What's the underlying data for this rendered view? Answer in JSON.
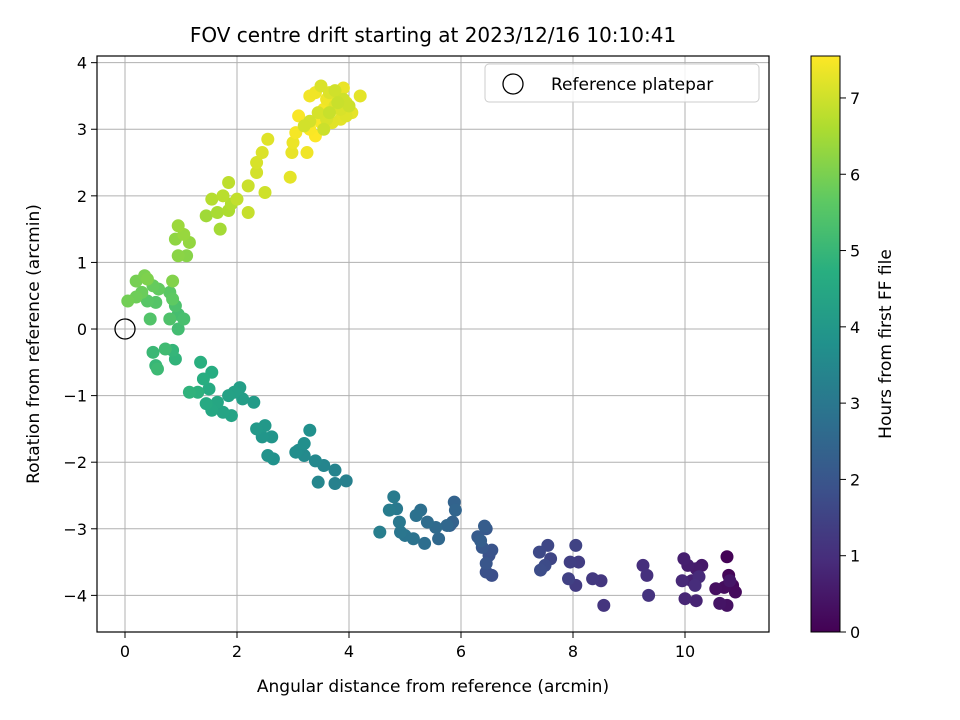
{
  "chart_data": {
    "type": "scatter",
    "title": "FOV centre drift starting at 2023/12/16 10:10:41",
    "xlabel": "Angular distance from reference (arcmin)",
    "ylabel": "Rotation from reference (arcmin)",
    "xlim": [
      -0.5,
      11.5
    ],
    "ylim": [
      -4.55,
      4.1
    ],
    "xticks": [
      0,
      2,
      4,
      6,
      8,
      10
    ],
    "yticks": [
      -4,
      -3,
      -2,
      -1,
      0,
      1,
      2,
      3,
      4
    ],
    "grid": true,
    "legend": {
      "placement": "top-right",
      "entries": [
        "Reference platepar"
      ]
    },
    "reference_point": {
      "label": "Reference platepar",
      "x": 0,
      "y": 0
    },
    "colorbar": {
      "label": "Hours from first FF file",
      "colormap": "viridis",
      "range": [
        0,
        7.55
      ],
      "ticks": [
        0,
        1,
        2,
        3,
        4,
        5,
        6,
        7
      ]
    },
    "series": [
      {
        "points": [
          [
            10.75,
            -3.42,
            0.05
          ],
          [
            10.78,
            -3.7,
            0.1
          ],
          [
            10.85,
            -3.85,
            0.15
          ],
          [
            10.9,
            -3.95,
            0.2
          ],
          [
            10.7,
            -3.88,
            0.25
          ],
          [
            10.55,
            -3.9,
            0.3
          ],
          [
            10.75,
            -4.15,
            0.35
          ],
          [
            10.62,
            -4.12,
            0.4
          ],
          [
            10.8,
            -3.78,
            0.45
          ],
          [
            10.3,
            -3.55,
            0.5
          ],
          [
            10.2,
            -3.6,
            0.55
          ],
          [
            10.05,
            -3.55,
            0.6
          ],
          [
            9.98,
            -3.45,
            0.65
          ],
          [
            10.12,
            -3.78,
            0.7
          ],
          [
            10.2,
            -4.08,
            0.75
          ],
          [
            10.0,
            -4.05,
            0.8
          ],
          [
            9.95,
            -3.78,
            0.85
          ],
          [
            10.25,
            -3.72,
            0.9
          ],
          [
            10.18,
            -3.85,
            0.95
          ],
          [
            9.25,
            -3.55,
            1.0
          ],
          [
            9.32,
            -3.7,
            1.05
          ],
          [
            9.35,
            -4.0,
            1.1
          ],
          [
            8.55,
            -4.15,
            1.15
          ],
          [
            8.5,
            -3.78,
            1.2
          ],
          [
            8.35,
            -3.75,
            1.25
          ],
          [
            8.05,
            -3.85,
            1.3
          ],
          [
            8.1,
            -3.5,
            1.35
          ],
          [
            7.95,
            -3.5,
            1.4
          ],
          [
            7.92,
            -3.75,
            1.45
          ],
          [
            8.05,
            -3.25,
            1.5
          ],
          [
            7.6,
            -3.45,
            1.55
          ],
          [
            7.55,
            -3.25,
            1.6
          ],
          [
            7.4,
            -3.35,
            1.65
          ],
          [
            7.5,
            -3.55,
            1.7
          ],
          [
            7.42,
            -3.62,
            1.75
          ],
          [
            6.55,
            -3.7,
            1.8
          ],
          [
            6.45,
            -3.65,
            1.85
          ],
          [
            6.5,
            -3.4,
            1.9
          ],
          [
            6.55,
            -3.32,
            1.95
          ],
          [
            6.45,
            -3.52,
            2.0
          ],
          [
            6.38,
            -3.28,
            2.05
          ],
          [
            6.45,
            -3.0,
            2.1
          ],
          [
            6.3,
            -3.12,
            2.15
          ],
          [
            6.42,
            -2.96,
            2.2
          ],
          [
            6.35,
            -3.18,
            2.25
          ],
          [
            5.8,
            -2.95,
            2.3
          ],
          [
            5.85,
            -2.9,
            2.35
          ],
          [
            5.88,
            -2.6,
            2.4
          ],
          [
            5.9,
            -2.72,
            2.45
          ],
          [
            5.75,
            -2.95,
            2.5
          ],
          [
            5.6,
            -3.15,
            2.55
          ],
          [
            5.55,
            -2.98,
            2.6
          ],
          [
            5.4,
            -2.9,
            2.65
          ],
          [
            5.35,
            -3.22,
            2.7
          ],
          [
            5.28,
            -2.72,
            2.75
          ],
          [
            5.2,
            -2.8,
            2.8
          ],
          [
            5.15,
            -3.15,
            2.85
          ],
          [
            5.0,
            -3.1,
            2.9
          ],
          [
            4.92,
            -3.05,
            2.95
          ],
          [
            4.9,
            -2.9,
            3.0
          ],
          [
            4.85,
            -2.7,
            3.05
          ],
          [
            4.8,
            -2.52,
            3.1
          ],
          [
            4.72,
            -2.72,
            3.15
          ],
          [
            4.55,
            -3.05,
            3.2
          ],
          [
            3.95,
            -2.28,
            3.25
          ],
          [
            3.75,
            -2.32,
            3.3
          ],
          [
            3.75,
            -2.12,
            3.35
          ],
          [
            3.55,
            -2.05,
            3.4
          ],
          [
            3.45,
            -2.3,
            3.45
          ],
          [
            3.4,
            -1.98,
            3.5
          ],
          [
            3.2,
            -1.9,
            3.55
          ],
          [
            3.1,
            -1.82,
            3.6
          ],
          [
            3.05,
            -1.85,
            3.65
          ],
          [
            3.2,
            -1.72,
            3.7
          ],
          [
            3.3,
            -1.52,
            3.75
          ],
          [
            2.65,
            -1.95,
            3.8
          ],
          [
            2.55,
            -1.9,
            3.85
          ],
          [
            2.62,
            -1.62,
            3.9
          ],
          [
            2.45,
            -1.62,
            3.95
          ],
          [
            2.5,
            -1.45,
            4.0
          ],
          [
            2.35,
            -1.5,
            4.05
          ],
          [
            2.3,
            -1.1,
            4.1
          ],
          [
            2.1,
            -1.05,
            4.15
          ],
          [
            2.05,
            -0.88,
            4.2
          ],
          [
            1.95,
            -0.95,
            4.25
          ],
          [
            1.85,
            -1.0,
            4.3
          ],
          [
            1.9,
            -1.3,
            4.35
          ],
          [
            1.75,
            -1.25,
            4.4
          ],
          [
            1.65,
            -1.1,
            4.45
          ],
          [
            1.55,
            -1.22,
            4.5
          ],
          [
            1.45,
            -1.12,
            4.55
          ],
          [
            1.5,
            -0.9,
            4.6
          ],
          [
            1.55,
            -0.65,
            4.65
          ],
          [
            1.4,
            -0.75,
            4.7
          ],
          [
            1.35,
            -0.5,
            4.75
          ],
          [
            1.3,
            -0.95,
            4.8
          ],
          [
            1.15,
            -0.95,
            4.85
          ],
          [
            0.9,
            -0.45,
            4.9
          ],
          [
            0.85,
            -0.32,
            4.95
          ],
          [
            0.55,
            -0.55,
            5.0
          ],
          [
            0.5,
            -0.35,
            5.05
          ],
          [
            0.58,
            -0.6,
            5.1
          ],
          [
            0.72,
            -0.3,
            5.15
          ],
          [
            0.95,
            0.0,
            5.2
          ],
          [
            0.95,
            0.22,
            5.25
          ],
          [
            1.05,
            0.15,
            5.3
          ],
          [
            0.9,
            0.35,
            5.35
          ],
          [
            0.8,
            0.15,
            5.4
          ],
          [
            0.45,
            0.15,
            5.45
          ],
          [
            0.55,
            0.4,
            5.5
          ],
          [
            0.4,
            0.42,
            5.55
          ],
          [
            0.8,
            0.55,
            5.6
          ],
          [
            0.85,
            0.45,
            5.65
          ],
          [
            0.6,
            0.6,
            5.7
          ],
          [
            0.5,
            0.65,
            5.75
          ],
          [
            0.3,
            0.55,
            5.8
          ],
          [
            0.2,
            0.48,
            5.85
          ],
          [
            0.05,
            0.42,
            5.9
          ],
          [
            0.2,
            0.72,
            5.95
          ],
          [
            0.35,
            0.8,
            6.0
          ],
          [
            0.4,
            0.75,
            6.05
          ],
          [
            0.85,
            0.72,
            6.1
          ],
          [
            1.1,
            1.1,
            6.15
          ],
          [
            0.95,
            1.1,
            6.2
          ],
          [
            0.9,
            1.35,
            6.25
          ],
          [
            1.15,
            1.3,
            6.3
          ],
          [
            1.05,
            1.42,
            6.35
          ],
          [
            0.95,
            1.55,
            6.4
          ],
          [
            1.45,
            1.7,
            6.45
          ],
          [
            1.7,
            1.5,
            6.5
          ],
          [
            1.65,
            1.75,
            6.55
          ],
          [
            1.85,
            1.78,
            6.6
          ],
          [
            1.9,
            1.88,
            6.65
          ],
          [
            1.55,
            1.95,
            6.7
          ],
          [
            1.75,
            2.0,
            6.75
          ],
          [
            1.85,
            2.2,
            6.8
          ],
          [
            2.0,
            1.95,
            6.85
          ],
          [
            2.2,
            1.75,
            6.9
          ],
          [
            2.2,
            2.15,
            6.95
          ],
          [
            2.5,
            2.05,
            7.0
          ],
          [
            2.35,
            2.35,
            7.05
          ],
          [
            2.35,
            2.5,
            7.1
          ],
          [
            2.45,
            2.65,
            7.15
          ],
          [
            2.55,
            2.85,
            7.2
          ],
          [
            2.95,
            2.28,
            7.25
          ],
          [
            2.98,
            2.65,
            7.3
          ],
          [
            3.0,
            2.8,
            7.35
          ],
          [
            3.25,
            2.65,
            7.4
          ],
          [
            3.05,
            2.95,
            7.45
          ],
          [
            3.1,
            3.2,
            7.5
          ],
          [
            3.4,
            2.9,
            7.55
          ],
          [
            3.3,
            3.0,
            7.52
          ],
          [
            3.5,
            3.1,
            7.48
          ],
          [
            3.55,
            3.3,
            7.45
          ],
          [
            3.3,
            3.5,
            7.42
          ],
          [
            3.4,
            3.55,
            7.4
          ],
          [
            3.6,
            3.45,
            7.38
          ],
          [
            3.7,
            3.3,
            7.36
          ],
          [
            3.8,
            3.5,
            7.34
          ],
          [
            3.9,
            3.62,
            7.32
          ],
          [
            3.95,
            3.4,
            7.3
          ],
          [
            4.05,
            3.25,
            7.28
          ],
          [
            4.2,
            3.5,
            7.26
          ],
          [
            3.85,
            3.15,
            7.24
          ],
          [
            3.7,
            3.1,
            7.22
          ],
          [
            3.75,
            3.35,
            7.2
          ],
          [
            3.95,
            3.2,
            7.18
          ],
          [
            3.65,
            3.55,
            7.16
          ],
          [
            3.5,
            3.65,
            7.14
          ],
          [
            3.85,
            3.3,
            7.12
          ],
          [
            3.6,
            3.15,
            7.1
          ],
          [
            3.45,
            3.25,
            7.08
          ],
          [
            3.3,
            3.12,
            7.06
          ],
          [
            3.2,
            3.05,
            7.04
          ],
          [
            3.75,
            3.58,
            7.02
          ],
          [
            3.9,
            3.45,
            7.0
          ],
          [
            4.0,
            3.35,
            6.98
          ],
          [
            3.55,
            3.0,
            6.96
          ],
          [
            3.8,
            3.4,
            6.94
          ],
          [
            3.65,
            3.25,
            6.92
          ]
        ]
      }
    ]
  }
}
